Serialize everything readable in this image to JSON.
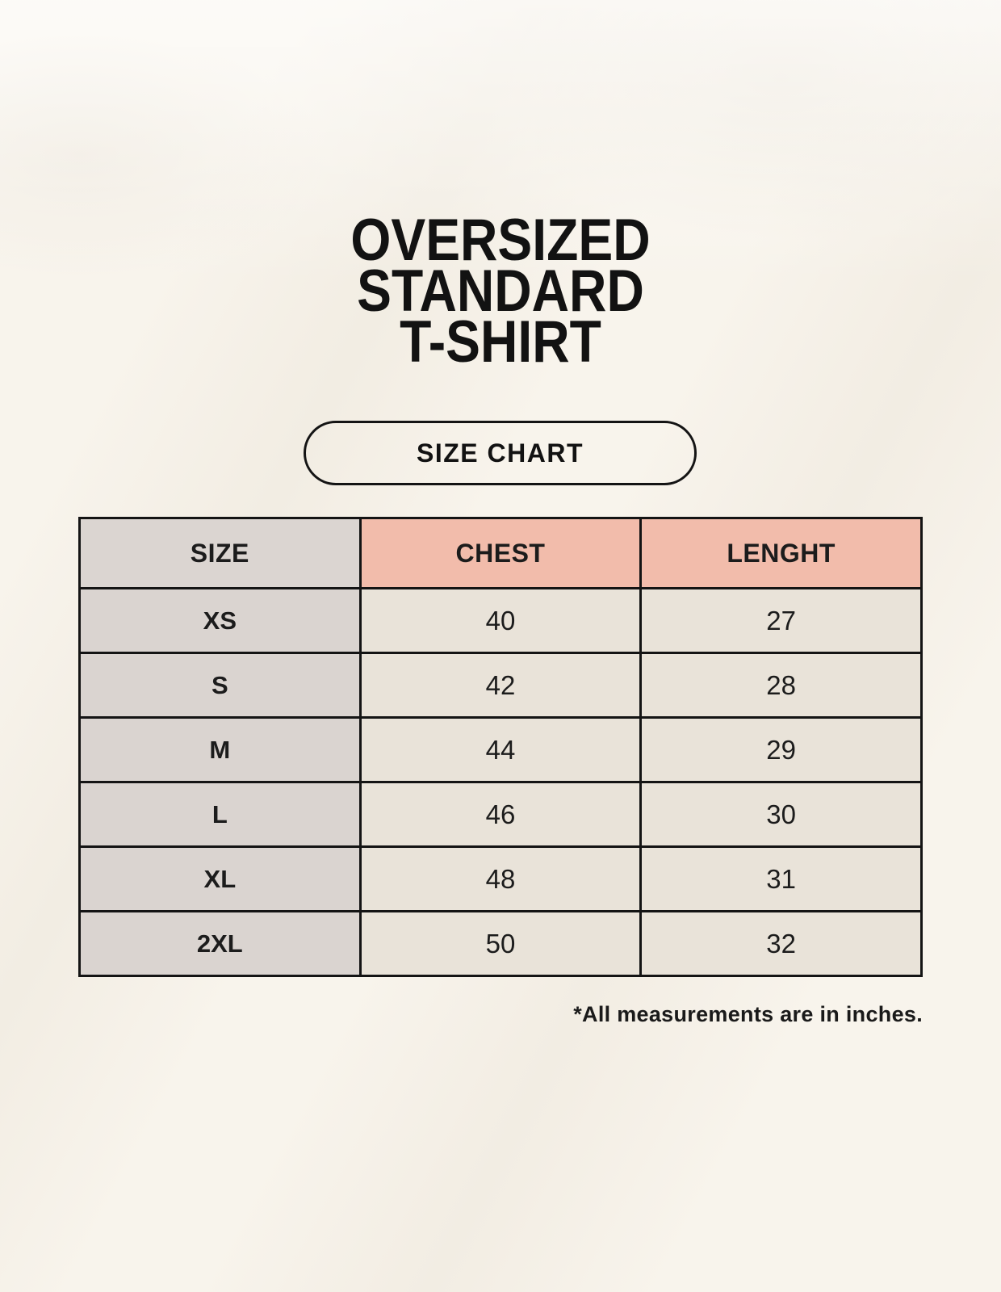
{
  "header": {
    "title_lines": [
      "OVERSIZED",
      "STANDARD",
      "T-SHIRT"
    ],
    "badge_label": "SIZE CHART"
  },
  "table": {
    "columns": [
      "SIZE",
      "CHEST",
      "LENGHT"
    ],
    "rows": [
      {
        "size": "XS",
        "chest": "40",
        "length": "27"
      },
      {
        "size": "S",
        "chest": "42",
        "length": "28"
      },
      {
        "size": "M",
        "chest": "44",
        "length": "29"
      },
      {
        "size": "L",
        "chest": "46",
        "length": "30"
      },
      {
        "size": "XL",
        "chest": "48",
        "length": "31"
      },
      {
        "size": "2XL",
        "chest": "50",
        "length": "32"
      }
    ]
  },
  "footnote": "*All measurements are in inches.",
  "colors": {
    "background": "#f8f4ec",
    "header_size_bg": "#dbd5d1",
    "header_measure_bg": "#f2bcab",
    "row_label_bg": "#dad4d0",
    "cell_bg": "#e9e3d9",
    "border": "#141414",
    "text": "#1c1c1c"
  },
  "chart_data": {
    "type": "table",
    "title": "OVERSIZED STANDARD T-SHIRT — SIZE CHART",
    "columns": [
      "SIZE",
      "CHEST",
      "LENGHT"
    ],
    "units": "inches",
    "rows": [
      {
        "SIZE": "XS",
        "CHEST": 40,
        "LENGHT": 27
      },
      {
        "SIZE": "S",
        "CHEST": 42,
        "LENGHT": 28
      },
      {
        "SIZE": "M",
        "CHEST": 44,
        "LENGHT": 29
      },
      {
        "SIZE": "L",
        "CHEST": 46,
        "LENGHT": 30
      },
      {
        "SIZE": "XL",
        "CHEST": 48,
        "LENGHT": 31
      },
      {
        "SIZE": "2XL",
        "CHEST": 50,
        "LENGHT": 32
      }
    ],
    "note": "*All measurements are in inches."
  }
}
